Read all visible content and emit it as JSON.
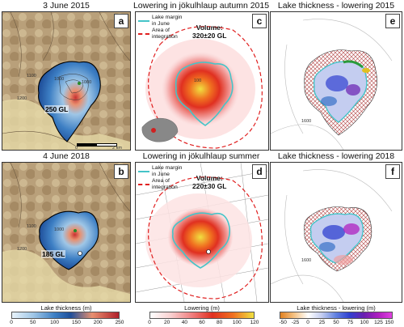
{
  "titles": {
    "a": "3 June 2015",
    "c": "Lowering in jökulhlaup autumn 2015",
    "e": "Lake thickness - lowering 2015",
    "b": "4 June 2018",
    "d": "Lowering in jökulhlaup summer 2018",
    "f": "Lake thickness - lowering 2018"
  },
  "panel_letters": {
    "a": "a",
    "b": "b",
    "c": "c",
    "d": "d",
    "e": "e",
    "f": "f"
  },
  "panel_a": {
    "volume_label": "250 GL",
    "contours": [
      "1100",
      "1200",
      "1000",
      "1000"
    ],
    "scale_labels": [
      "0",
      "2 km"
    ]
  },
  "panel_b": {
    "volume_label": "185 GL",
    "contours": [
      "1100",
      "1200",
      "1000"
    ]
  },
  "panel_c": {
    "volume_line1": "Volume:",
    "volume_line2": "320±20 GL",
    "legend_margin": "Lake margin\nin June",
    "legend_area": "Area of\nintegration",
    "inner_label": "100"
  },
  "panel_d": {
    "volume_line1": "Volume:",
    "volume_line2": "220±30 GL",
    "legend_margin": "Lake margin\nin June",
    "legend_area": "Area of\nintegration"
  },
  "panel_e": {
    "contour": "1600"
  },
  "panel_f": {
    "contour": "1600"
  },
  "colorbars": {
    "thickness": {
      "title": "Lake thickness (m)",
      "ticks": [
        "0",
        "50",
        "100",
        "150",
        "200",
        "250"
      ]
    },
    "lowering": {
      "title": "Lowering (m)",
      "ticks": [
        "0",
        "20",
        "40",
        "60",
        "80",
        "100",
        "120"
      ]
    },
    "difference": {
      "title": "Lake thickness - lowering (m)",
      "ticks": [
        "-50",
        "-25",
        "0",
        "25",
        "50",
        "75",
        "100",
        "125",
        "150"
      ]
    }
  },
  "colors": {
    "lake_margin": "#45c4c8",
    "area_integration": "#e02020",
    "thickness_low": "#cfe6f5",
    "thickness_high": "#b0202a",
    "lowering_high": "#c8102e"
  }
}
